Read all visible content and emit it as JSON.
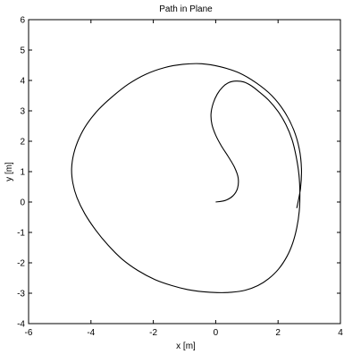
{
  "chart_data": {
    "type": "line",
    "title": "Path in Plane",
    "xlabel": "x  [m]",
    "ylabel": "y  [m]",
    "xlim": [
      -6,
      4
    ],
    "ylim": [
      -4,
      6
    ],
    "xticks": [
      -6,
      -4,
      -2,
      0,
      2,
      4
    ],
    "yticks": [
      -4,
      -3,
      -2,
      -1,
      0,
      1,
      2,
      3,
      4,
      5,
      6
    ],
    "grid": false,
    "line_color": "#000000",
    "series": [
      {
        "description_points": "approximate path read from plot",
        "x": [
          0.0,
          0.3,
          0.55,
          0.7,
          0.72,
          0.6,
          0.4,
          0.18,
          0.0,
          -0.12,
          -0.15,
          -0.08,
          0.05,
          0.22,
          0.42,
          0.65,
          0.9,
          1.15,
          1.4,
          1.7,
          2.0,
          2.25,
          2.45,
          2.58,
          2.67,
          2.7,
          2.68,
          2.6,
          2.47,
          2.28,
          2.02,
          1.7,
          1.35,
          0.95,
          0.5,
          0.05,
          -0.42,
          -0.9,
          -1.4,
          -1.95,
          -2.5,
          -3.0,
          -3.45,
          -3.85,
          -4.2,
          -4.45,
          -4.58,
          -4.62,
          -4.55,
          -4.38,
          -4.12,
          -3.75,
          -3.3,
          -2.8,
          -2.25,
          -1.65,
          -1.05,
          -0.45,
          0.15,
          0.75,
          1.3,
          1.8,
          2.2,
          2.5,
          2.68,
          2.75,
          2.72,
          2.6
        ],
        "y": [
          0.0,
          0.05,
          0.2,
          0.45,
          0.8,
          1.15,
          1.5,
          1.85,
          2.2,
          2.55,
          2.9,
          3.25,
          3.55,
          3.78,
          3.93,
          3.98,
          3.95,
          3.82,
          3.62,
          3.35,
          2.98,
          2.55,
          2.05,
          1.5,
          0.9,
          0.3,
          -0.3,
          -0.85,
          -1.35,
          -1.8,
          -2.2,
          -2.52,
          -2.75,
          -2.9,
          -2.97,
          -2.98,
          -2.95,
          -2.88,
          -2.75,
          -2.55,
          -2.25,
          -1.88,
          -1.42,
          -0.92,
          -0.38,
          0.15,
          0.62,
          1.1,
          1.6,
          2.1,
          2.58,
          3.05,
          3.48,
          3.88,
          4.2,
          4.42,
          4.53,
          4.55,
          4.45,
          4.25,
          3.92,
          3.5,
          2.98,
          2.38,
          1.75,
          1.1,
          0.45,
          -0.2
        ]
      }
    ]
  }
}
